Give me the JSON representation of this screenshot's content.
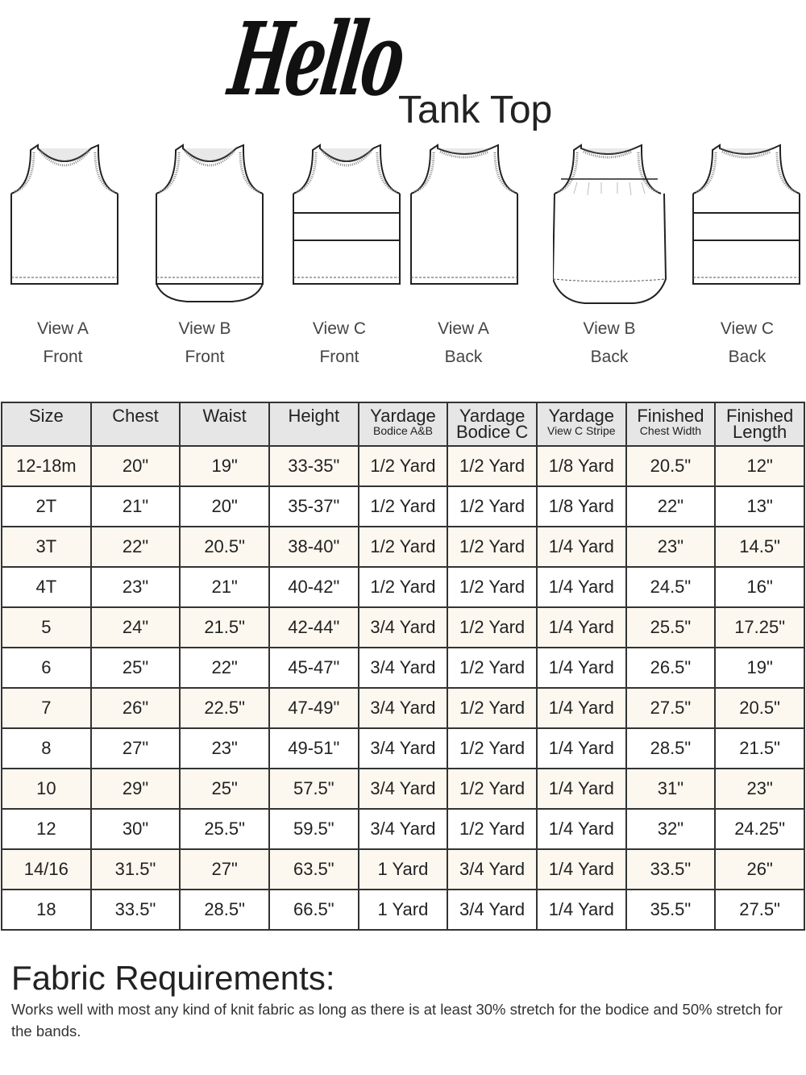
{
  "header": {
    "logo_text": "Hello",
    "subtitle": "Tank Top"
  },
  "views": [
    {
      "view": "View A",
      "side": "Front",
      "style": "a-front"
    },
    {
      "view": "View B",
      "side": "Front",
      "style": "b-front"
    },
    {
      "view": "View C",
      "side": "Front",
      "style": "c-front"
    },
    {
      "view": "View A",
      "side": "Back",
      "style": "a-back"
    },
    {
      "view": "View B",
      "side": "Back",
      "style": "b-back"
    },
    {
      "view": "View C",
      "side": "Back",
      "style": "c-back"
    }
  ],
  "table": {
    "headers": [
      {
        "main": "Size",
        "sub": ""
      },
      {
        "main": "Chest",
        "sub": ""
      },
      {
        "main": "Waist",
        "sub": ""
      },
      {
        "main": "Height",
        "sub": ""
      },
      {
        "main": "Yardage",
        "sub": "Bodice A&B"
      },
      {
        "main": "Yardage",
        "sub": "Bodice C",
        "sub_large": true
      },
      {
        "main": "Yardage",
        "sub": "View C Stripe"
      },
      {
        "main": "Finished",
        "sub": "Chest Width"
      },
      {
        "main": "Finished",
        "sub": "Length",
        "sub_large": true
      }
    ],
    "rows": [
      [
        "12-18m",
        "20\"",
        "19\"",
        "33-35\"",
        "1/2 Yard",
        "1/2 Yard",
        "1/8 Yard",
        "20.5\"",
        "12\""
      ],
      [
        "2T",
        "21\"",
        "20\"",
        "35-37\"",
        "1/2 Yard",
        "1/2 Yard",
        "1/8 Yard",
        "22\"",
        "13\""
      ],
      [
        "3T",
        "22\"",
        "20.5\"",
        "38-40\"",
        "1/2 Yard",
        "1/2 Yard",
        "1/4 Yard",
        "23\"",
        "14.5\""
      ],
      [
        "4T",
        "23\"",
        "21\"",
        "40-42\"",
        "1/2 Yard",
        "1/2 Yard",
        "1/4 Yard",
        "24.5\"",
        "16\""
      ],
      [
        "5",
        "24\"",
        "21.5\"",
        "42-44\"",
        "3/4 Yard",
        "1/2 Yard",
        "1/4 Yard",
        "25.5\"",
        "17.25\""
      ],
      [
        "6",
        "25\"",
        "22\"",
        "45-47\"",
        "3/4 Yard",
        "1/2 Yard",
        "1/4 Yard",
        "26.5\"",
        "19\""
      ],
      [
        "7",
        "26\"",
        "22.5\"",
        "47-49\"",
        "3/4 Yard",
        "1/2 Yard",
        "1/4 Yard",
        "27.5\"",
        "20.5\""
      ],
      [
        "8",
        "27\"",
        "23\"",
        "49-51\"",
        "3/4 Yard",
        "1/2 Yard",
        "1/4 Yard",
        "28.5\"",
        "21.5\""
      ],
      [
        "10",
        "29\"",
        "25\"",
        "57.5\"",
        "3/4 Yard",
        "1/2 Yard",
        "1/4 Yard",
        "31\"",
        "23\""
      ],
      [
        "12",
        "30\"",
        "25.5\"",
        "59.5\"",
        "3/4 Yard",
        "1/2 Yard",
        "1/4 Yard",
        "32\"",
        "24.25\""
      ],
      [
        "14/16",
        "31.5\"",
        "27\"",
        "63.5\"",
        "1 Yard",
        "3/4 Yard",
        "1/4 Yard",
        "33.5\"",
        "26\""
      ],
      [
        "18",
        "33.5\"",
        "28.5\"",
        "66.5\"",
        "1 Yard",
        "3/4 Yard",
        "1/4 Yard",
        "35.5\"",
        "27.5\""
      ]
    ]
  },
  "fabric": {
    "title": "Fabric Requirements:",
    "body": "Works well with most any kind of knit fabric as long as there is at least 30% stretch for the bodice and 50% stretch for the bands."
  },
  "colors": {
    "header_bg": "#e6e6e6",
    "alt_row_bg": "#fdf8ef",
    "border": "#333333"
  }
}
